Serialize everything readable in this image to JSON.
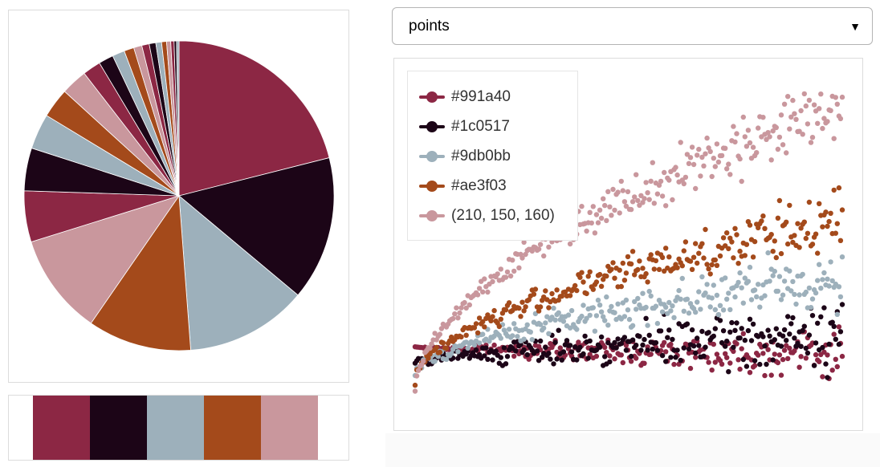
{
  "select": {
    "value": "points",
    "arrow_icon": "triangle-down-icon"
  },
  "palette": [
    "#8c2744",
    "#1c0517",
    "#9db0bb",
    "#a44a1b",
    "#c9979d"
  ],
  "chart_data": [
    {
      "type": "pie",
      "title": "",
      "colors": [
        "#8c2744",
        "#1c0517",
        "#9db0bb",
        "#a44a1b",
        "#c9979d"
      ],
      "values": [
        24.5,
        17.5,
        14.8,
        12.6,
        12.3,
        6.2,
        5.2,
        4.3,
        3.6,
        3.2,
        2.2,
        1.8,
        1.5,
        1.2,
        1.0,
        0.9,
        0.8,
        0.7,
        0.6,
        0.5,
        0.4,
        0.3,
        0.3
      ]
    },
    {
      "type": "scatter",
      "title": "",
      "xlabel": "",
      "ylabel": "",
      "x": [
        0,
        100
      ],
      "xlim": [
        0,
        100
      ],
      "ylim": [
        0,
        10
      ],
      "axes_visible": false,
      "grid": false,
      "legend_position": "top-left",
      "series": [
        {
          "name": "#991a40",
          "color": "#8c2744",
          "start": [
            0,
            2.0
          ],
          "end": [
            100,
            1.8
          ],
          "spread": [
            0.0,
            0.55
          ]
        },
        {
          "name": "#1c0517",
          "color": "#1c0517",
          "start": [
            0,
            1.5
          ],
          "end": [
            100,
            2.3
          ],
          "spread": [
            0.1,
            0.75
          ]
        },
        {
          "name": "#9db0bb",
          "color": "#9db0bb",
          "start": [
            0,
            1.2
          ],
          "end": [
            100,
            4.0
          ],
          "spread": [
            0.1,
            0.7
          ]
        },
        {
          "name": "#ae3f03",
          "color": "#a44a1b",
          "start": [
            0,
            1.0
          ],
          "end": [
            100,
            5.7
          ],
          "spread": [
            0.1,
            0.7
          ]
        },
        {
          "name": "(210, 150, 160)",
          "color": "#c9979d",
          "start": [
            0,
            0.7
          ],
          "end": [
            100,
            9.1
          ],
          "spread": [
            0.1,
            0.8
          ]
        }
      ]
    }
  ]
}
